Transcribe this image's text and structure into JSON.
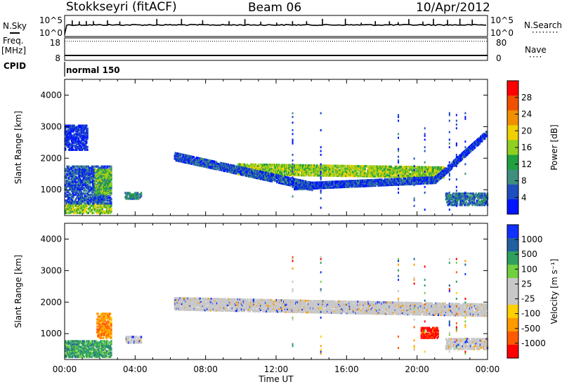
{
  "header": {
    "radar": "Stokkseyri (fitACF)",
    "beam": "Beam 06",
    "date": "10/Apr/2012"
  },
  "side_labels": {
    "nsky": "N.Sky",
    "nsearch": "N.Search",
    "freq": "Freq.",
    "mhz": "[MHz]",
    "nave": "Nave",
    "cpid": "CPID",
    "cpid_value": "normal 150"
  },
  "colors": {
    "power_scale": [
      "#0014ff",
      "#1f4ebf",
      "#3f8f7f",
      "#20a040",
      "#90d020",
      "#f0d000",
      "#f09000",
      "#f05000",
      "#ff0000"
    ],
    "velocity_scale": [
      "#ff0000",
      "#ff5a00",
      "#ff9a00",
      "#ffd000",
      "#c8c8c8",
      "#c8c8c8",
      "#70d040",
      "#30a060",
      "#2060a0",
      "#1030ff"
    ],
    "gray_scatter": "#c8c8c8"
  },
  "chart_data": [
    {
      "type": "line",
      "name": "noise-panel",
      "yticks_left": [
        "10^5",
        "10^0"
      ],
      "yticks_right": [
        "10^5",
        "10^0"
      ],
      "x_range_hours": [
        0,
        24
      ],
      "baseline_level": 0.45,
      "spike_times_hours": [
        0.4,
        0.8,
        1.2,
        1.6,
        2.4,
        3.1,
        5.2,
        6.6,
        7.8,
        9.3,
        10.2,
        11.1,
        12.0,
        12.9,
        13.7,
        14.6,
        15.9,
        16.8,
        17.6,
        18.4,
        18.9,
        19.5,
        20.3,
        20.9,
        21.7,
        22.4,
        23.1
      ]
    },
    {
      "type": "line",
      "name": "frequency-panel",
      "yticks_left": [
        "18",
        "8"
      ],
      "yticks_right": [
        "80",
        "0"
      ],
      "x_range_hours": [
        0,
        24
      ],
      "freq_level": 0.22,
      "nave_level": 0.85
    },
    {
      "type": "heatmap",
      "name": "power-panel",
      "x_range_hours": [
        0,
        24
      ],
      "ylim": [
        180,
        4500
      ],
      "yticks": [
        1000,
        2000,
        3000,
        4000
      ],
      "ylabel": "Slant Range [km]",
      "colorbar_label": "Power [dB]",
      "colorbar_ticks": [
        "28",
        "24",
        "20",
        "16",
        "12",
        "8",
        "4"
      ],
      "colorbar_range": [
        0,
        32
      ],
      "features": [
        {
          "kind": "band",
          "t0": 9.8,
          "t1": 21.5,
          "r_start": 1700,
          "r_end": 1600,
          "thickness": 350,
          "power": 20
        },
        {
          "kind": "band",
          "t0": 6.2,
          "t1": 14.0,
          "r_start": 2100,
          "r_end": 1150,
          "thickness": 250,
          "power": 8
        },
        {
          "kind": "band",
          "t0": 13.0,
          "t1": 21.0,
          "r_start": 1150,
          "r_end": 1350,
          "thickness": 200,
          "power": 7
        },
        {
          "kind": "band",
          "t0": 21.0,
          "t1": 23.9,
          "r_start": 1350,
          "r_end": 2800,
          "thickness": 200,
          "power": 6
        },
        {
          "kind": "blob",
          "t0": 0.0,
          "t1": 2.6,
          "r0": 300,
          "r1": 600,
          "power": 20
        },
        {
          "kind": "blob",
          "t0": 0.0,
          "t1": 2.6,
          "r0": 600,
          "r1": 1800,
          "power": 8
        },
        {
          "kind": "blob",
          "t0": 1.7,
          "t1": 2.6,
          "r0": 900,
          "r1": 1700,
          "power": 18
        },
        {
          "kind": "blob",
          "t0": 3.4,
          "t1": 4.3,
          "r0": 750,
          "r1": 950,
          "power": 12
        },
        {
          "kind": "blob",
          "t0": 0.0,
          "t1": 1.3,
          "r0": 2300,
          "r1": 3100,
          "power": 5
        },
        {
          "kind": "blob",
          "t0": 21.6,
          "t1": 24.0,
          "r0": 550,
          "r1": 950,
          "power": 10
        }
      ]
    },
    {
      "type": "heatmap",
      "name": "velocity-panel",
      "x_range_hours": [
        0,
        24
      ],
      "ylim": [
        180,
        4500
      ],
      "yticks": [
        1000,
        2000,
        3000,
        4000
      ],
      "xticks": [
        "00:00",
        "04:00",
        "08:00",
        "12:00",
        "16:00",
        "20:00",
        "00:00"
      ],
      "xlabel": "Time UT",
      "ylabel": "Slant Range [km]",
      "colorbar_label": "Velocity [m s⁻¹]",
      "colorbar_ticks": [
        "1000",
        "500",
        "100",
        "25",
        "-25",
        "-100",
        "-500",
        "-1000"
      ],
      "features": [
        {
          "kind": "band",
          "t0": 6.2,
          "t1": 23.9,
          "r_start": 2000,
          "r_end": 1800,
          "thickness": 400,
          "velocity_class": "gray"
        },
        {
          "kind": "blob",
          "t0": 0.0,
          "t1": 2.6,
          "r0": 300,
          "r1": 800,
          "velocity_class": "green"
        },
        {
          "kind": "blob",
          "t0": 1.8,
          "t1": 2.6,
          "r0": 900,
          "r1": 1700,
          "velocity_class": "orange"
        },
        {
          "kind": "blob",
          "t0": 20.2,
          "t1": 21.2,
          "r0": 900,
          "r1": 1250,
          "velocity_class": "red"
        },
        {
          "kind": "blob",
          "t0": 3.4,
          "t1": 4.3,
          "r0": 750,
          "r1": 950,
          "velocity_class": "gray"
        },
        {
          "kind": "blob",
          "t0": 21.6,
          "t1": 24.0,
          "r0": 550,
          "r1": 900,
          "velocity_class": "gray"
        }
      ]
    }
  ]
}
